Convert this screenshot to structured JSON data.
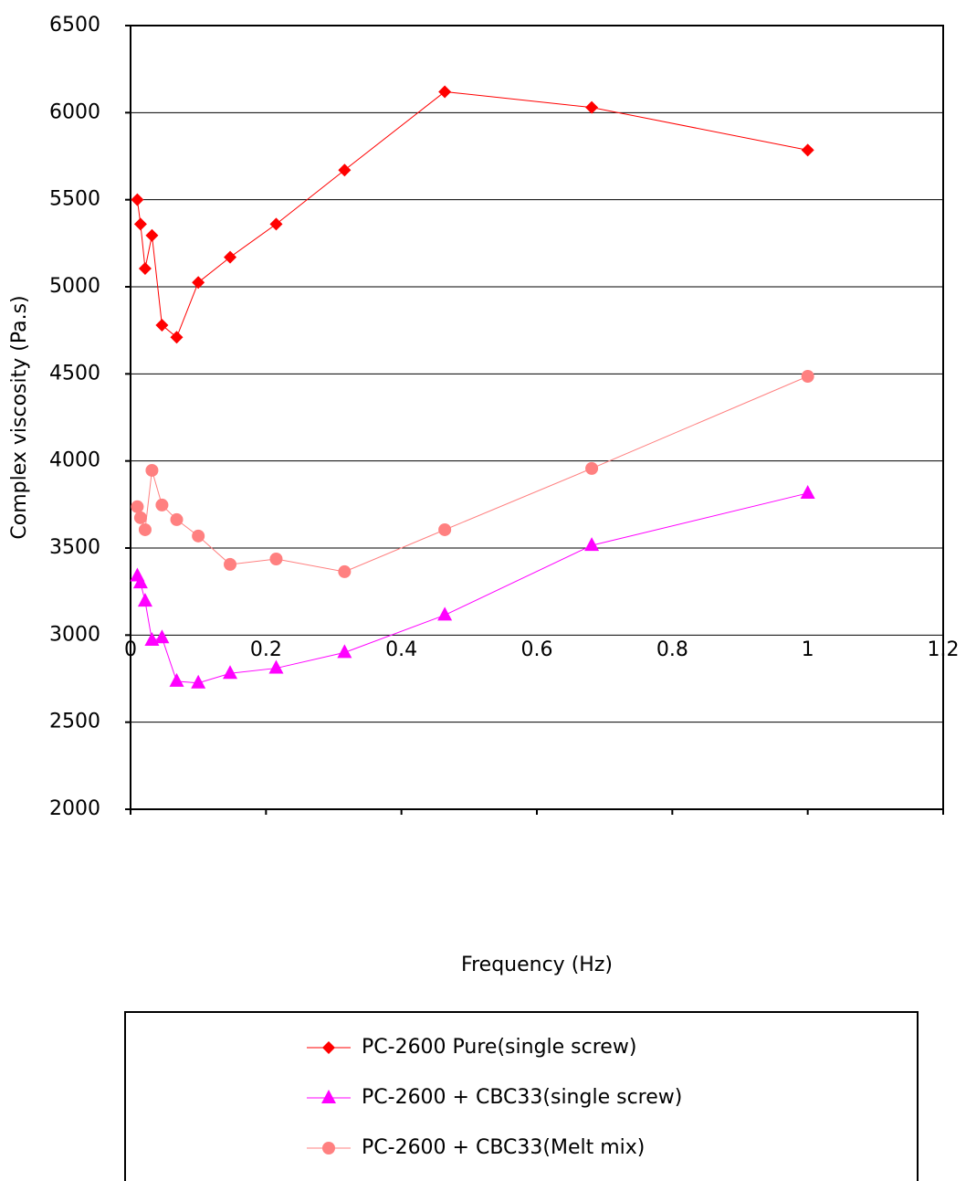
{
  "chart_data": {
    "type": "line",
    "x_label": "Frequency (Hz)",
    "y_label": "Complex viscosity (Pa.s)",
    "x": [
      0.01,
      0.0147,
      0.0215,
      0.0316,
      0.0464,
      0.0681,
      0.1,
      0.147,
      0.215,
      0.316,
      0.464,
      0.681,
      1
    ],
    "series": [
      {
        "name": "PC-2600 Pure(single screw)",
        "color": "#ff0000",
        "marker": "diamond",
        "values": [
          5500,
          5360,
          5105,
          5295,
          4780,
          4710,
          5025,
          5170,
          5360,
          5670,
          6120,
          6030,
          5785
        ]
      },
      {
        "name": "PC-2600 + CBC33(single screw)",
        "color": "#ff00ff",
        "marker": "triangle",
        "values": [
          3340,
          3300,
          3195,
          2970,
          2985,
          2735,
          2725,
          2780,
          2810,
          2900,
          3115,
          3515,
          3815
        ]
      },
      {
        "name": "PC-2600 + CBC33(Melt mix)",
        "color": "#ff8080",
        "marker": "circle",
        "values": [
          3737,
          3674,
          3605,
          3946,
          3747,
          3663,
          3569,
          3406,
          3437,
          3364,
          3605,
          3957,
          4486
        ]
      }
    ],
    "xlim": [
      0,
      1.2
    ],
    "xticks": [
      0,
      0.2,
      0.4,
      0.6,
      0.8,
      1,
      1.2
    ],
    "ylim": [
      2000,
      6500
    ],
    "yticks": [
      2000,
      2500,
      3000,
      3500,
      4000,
      4500,
      5000,
      5500,
      6000,
      6500
    ],
    "grid": true,
    "legend": "bottom"
  }
}
